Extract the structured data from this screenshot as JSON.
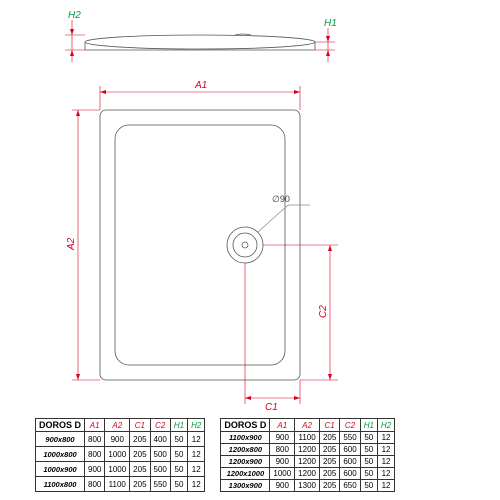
{
  "product": "DOROS D",
  "drain_diameter_label": "∅90",
  "dims": {
    "A1": "A1",
    "A2": "A2",
    "C1": "C1",
    "C2": "C2",
    "H1": "H1",
    "H2": "H2"
  },
  "colors": {
    "red": "#d9001b",
    "green": "#009944",
    "gray": "#888",
    "shape": "#555"
  },
  "headers": [
    "A1",
    "A2",
    "C1",
    "C2",
    "H1",
    "H2"
  ],
  "table1": [
    {
      "m": "900x800",
      "v": [
        "800",
        "900",
        "205",
        "400",
        "50",
        "12"
      ]
    },
    {
      "m": "1000x800",
      "v": [
        "800",
        "1000",
        "205",
        "500",
        "50",
        "12"
      ]
    },
    {
      "m": "1000x900",
      "v": [
        "900",
        "1000",
        "205",
        "500",
        "50",
        "12"
      ]
    },
    {
      "m": "1100x800",
      "v": [
        "800",
        "1100",
        "205",
        "550",
        "50",
        "12"
      ]
    }
  ],
  "table2": [
    {
      "m": "1100x900",
      "v": [
        "900",
        "1100",
        "205",
        "550",
        "50",
        "12"
      ]
    },
    {
      "m": "1200x800",
      "v": [
        "800",
        "1200",
        "205",
        "600",
        "50",
        "12"
      ]
    },
    {
      "m": "1200x900",
      "v": [
        "900",
        "1200",
        "205",
        "600",
        "50",
        "12"
      ]
    },
    {
      "m": "1200x1000",
      "v": [
        "1000",
        "1200",
        "205",
        "600",
        "50",
        "12"
      ]
    },
    {
      "m": "1300x900",
      "v": [
        "900",
        "1300",
        "205",
        "650",
        "50",
        "12"
      ]
    }
  ]
}
